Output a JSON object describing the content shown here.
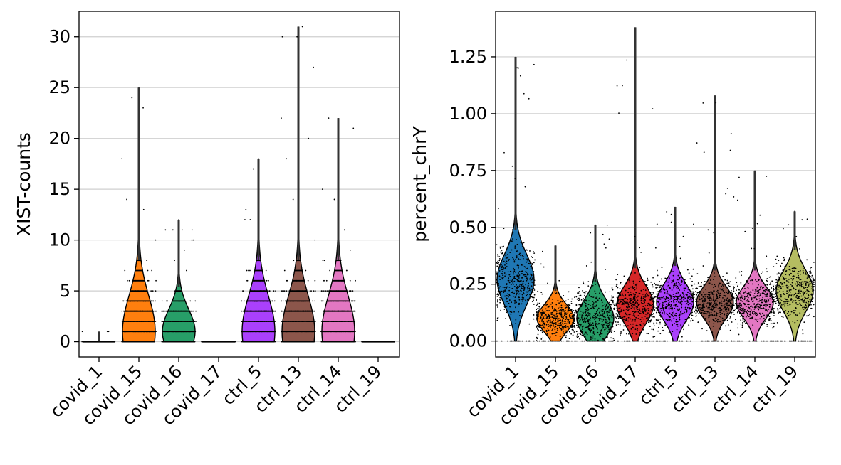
{
  "chart_data": [
    {
      "type": "violin",
      "title": "",
      "xlabel": "",
      "ylabel": "XIST-counts",
      "ylim": [
        -1.5,
        32.5
      ],
      "yticks": [
        0,
        5,
        10,
        15,
        20,
        25,
        30
      ],
      "grid": true,
      "categories": [
        "covid_1",
        "covid_15",
        "covid_16",
        "covid_17",
        "ctrl_5",
        "ctrl_13",
        "ctrl_14",
        "ctrl_19"
      ],
      "colors": [
        "#1f77b4",
        "#ff7f0e",
        "#279e68",
        "#d62728",
        "#aa40fc",
        "#8c564b",
        "#e377c2",
        "#b5bd61"
      ],
      "series": [
        {
          "name": "covid_1",
          "median": 0,
          "q1": 0,
          "q3": 0,
          "max": 1,
          "density_peak": 0,
          "spread": 0.3,
          "discrete": true
        },
        {
          "name": "covid_15",
          "median": 2,
          "q1": 1,
          "q3": 4,
          "max": 25,
          "density_peak": 1,
          "spread": 3.5,
          "discrete": true
        },
        {
          "name": "covid_16",
          "median": 1,
          "q1": 0,
          "q3": 2,
          "max": 12,
          "density_peak": 1,
          "spread": 2.2,
          "discrete": true
        },
        {
          "name": "covid_17",
          "median": 0,
          "q1": 0,
          "q3": 0,
          "max": 0,
          "density_peak": 0,
          "spread": 0.2,
          "discrete": true
        },
        {
          "name": "ctrl_5",
          "median": 2,
          "q1": 1,
          "q3": 4,
          "max": 18,
          "density_peak": 1,
          "spread": 3.5,
          "discrete": true
        },
        {
          "name": "ctrl_13",
          "median": 2,
          "q1": 1,
          "q3": 4,
          "max": 31,
          "density_peak": 1,
          "spread": 3.5,
          "discrete": true
        },
        {
          "name": "ctrl_14",
          "median": 2,
          "q1": 1,
          "q3": 4,
          "max": 22,
          "density_peak": 1,
          "spread": 3.5,
          "discrete": true
        },
        {
          "name": "ctrl_19",
          "median": 0,
          "q1": 0,
          "q3": 0,
          "max": 0,
          "density_peak": 0,
          "spread": 0.2,
          "discrete": true
        }
      ]
    },
    {
      "type": "violin",
      "title": "",
      "xlabel": "",
      "ylabel": "percent_chrY",
      "ylim": [
        -0.07,
        1.45
      ],
      "yticks": [
        0.0,
        0.25,
        0.5,
        0.75,
        1.0,
        1.25
      ],
      "ytick_labels": [
        "0.00",
        "0.25",
        "0.50",
        "0.75",
        "1.00",
        "1.25"
      ],
      "grid": true,
      "categories": [
        "covid_1",
        "covid_15",
        "covid_16",
        "covid_17",
        "ctrl_5",
        "ctrl_13",
        "ctrl_14",
        "ctrl_19"
      ],
      "colors": [
        "#1f77b4",
        "#ff7f0e",
        "#279e68",
        "#d62728",
        "#aa40fc",
        "#8c564b",
        "#e377c2",
        "#b5bd61"
      ],
      "series": [
        {
          "name": "covid_1",
          "median": 0.27,
          "max": 1.25,
          "density_peak": 0.27,
          "spread": 0.11,
          "discrete": false
        },
        {
          "name": "covid_15",
          "median": 0.1,
          "max": 0.42,
          "density_peak": 0.1,
          "spread": 0.06,
          "discrete": false
        },
        {
          "name": "covid_16",
          "median": 0.12,
          "max": 0.51,
          "density_peak": 0.1,
          "spread": 0.08,
          "discrete": false
        },
        {
          "name": "covid_17",
          "median": 0.17,
          "max": 1.38,
          "density_peak": 0.16,
          "spread": 0.08,
          "discrete": false
        },
        {
          "name": "ctrl_5",
          "median": 0.18,
          "max": 0.59,
          "density_peak": 0.17,
          "spread": 0.08,
          "discrete": false
        },
        {
          "name": "ctrl_13",
          "median": 0.17,
          "max": 1.08,
          "density_peak": 0.17,
          "spread": 0.07,
          "discrete": false
        },
        {
          "name": "ctrl_14",
          "median": 0.17,
          "max": 0.75,
          "density_peak": 0.17,
          "spread": 0.07,
          "discrete": false
        },
        {
          "name": "ctrl_19",
          "median": 0.23,
          "max": 0.57,
          "density_peak": 0.22,
          "spread": 0.09,
          "discrete": false
        }
      ]
    }
  ]
}
